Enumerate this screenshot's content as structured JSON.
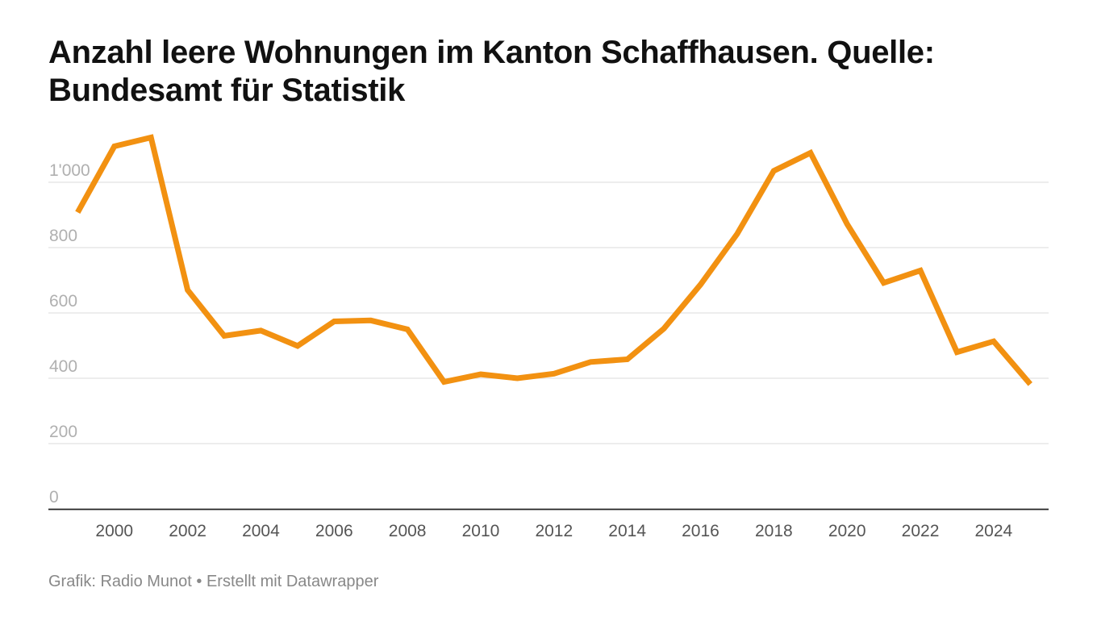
{
  "chart_data": {
    "type": "line",
    "title": "Anzahl leere Wohnungen im Kanton Schaffhausen. Quelle: Bundesamt für Statistik",
    "xlabel": "",
    "ylabel": "",
    "x": [
      1999,
      2000,
      2001,
      2002,
      2003,
      2004,
      2005,
      2006,
      2007,
      2008,
      2009,
      2010,
      2011,
      2012,
      2013,
      2014,
      2015,
      2016,
      2017,
      2018,
      2019,
      2020,
      2021,
      2022,
      2023,
      2024,
      2025
    ],
    "series": [
      {
        "name": "Leere Wohnungen",
        "color": "#f29111",
        "values": [
          908,
          1110,
          1137,
          670,
          530,
          546,
          499,
          574,
          577,
          550,
          389,
          412,
          400,
          414,
          450,
          458,
          552,
          687,
          842,
          1035,
          1090,
          872,
          692,
          730,
          480,
          513,
          382
        ]
      }
    ],
    "xticks": [
      2000,
      2002,
      2004,
      2006,
      2008,
      2010,
      2012,
      2014,
      2016,
      2018,
      2020,
      2022,
      2024
    ],
    "yticks": [
      {
        "value": 0,
        "label": "0"
      },
      {
        "value": 200,
        "label": "200"
      },
      {
        "value": 400,
        "label": "400"
      },
      {
        "value": 600,
        "label": "600"
      },
      {
        "value": 800,
        "label": "800"
      },
      {
        "value": 1000,
        "label": "1'000"
      }
    ],
    "xlim": [
      1998.2,
      2025.5
    ],
    "ylim": [
      0,
      1000
    ],
    "grid": true,
    "legend": "none"
  },
  "footer": "Grafik: Radio Munot • Erstellt mit Datawrapper"
}
